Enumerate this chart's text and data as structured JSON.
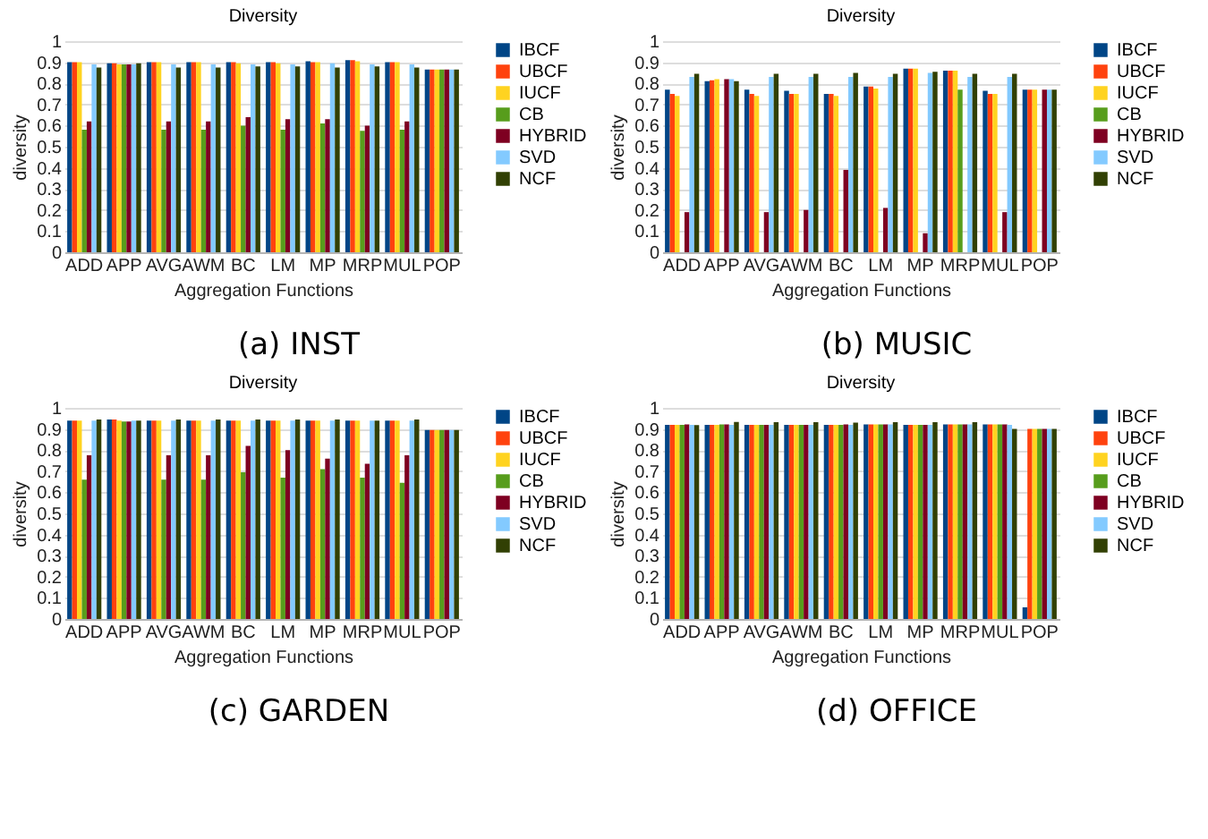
{
  "chart_data": [
    {
      "type": "bar",
      "title": "Diversity",
      "xlabel": "Aggregation Functions",
      "ylabel": "diversity",
      "annotations": [
        "(a) INST"
      ],
      "categories": [
        "ADD",
        "APP",
        "AVG",
        "AWM",
        "BC",
        "LM",
        "MP",
        "MRP",
        "MUL",
        "POP"
      ],
      "ylim": [
        0,
        1
      ],
      "yticks": [
        0,
        0.1,
        0.2,
        0.3,
        0.4,
        0.5,
        0.6,
        0.7,
        0.8,
        0.9,
        1
      ],
      "grid": "y",
      "legend": "right",
      "series": [
        {
          "name": "IBCF",
          "color": "#004586",
          "values": [
            0.9,
            0.895,
            0.9,
            0.9,
            0.9,
            0.9,
            0.905,
            0.91,
            0.9,
            0.865
          ]
        },
        {
          "name": "UBCF",
          "color": "#ff420e",
          "values": [
            0.9,
            0.895,
            0.9,
            0.9,
            0.9,
            0.9,
            0.9,
            0.91,
            0.9,
            0.865
          ]
        },
        {
          "name": "IUCF",
          "color": "#ffd320",
          "values": [
            0.9,
            0.89,
            0.9,
            0.9,
            0.895,
            0.895,
            0.9,
            0.905,
            0.9,
            0.865
          ]
        },
        {
          "name": "CB",
          "color": "#579d1c",
          "values": [
            0.58,
            0.89,
            0.58,
            0.58,
            0.6,
            0.58,
            0.61,
            0.575,
            0.58,
            0.865
          ]
        },
        {
          "name": "HYBRID",
          "color": "#7e0021",
          "values": [
            0.62,
            0.89,
            0.62,
            0.62,
            0.64,
            0.63,
            0.63,
            0.6,
            0.62,
            0.865
          ]
        },
        {
          "name": "SVD",
          "color": "#83caff",
          "values": [
            0.89,
            0.89,
            0.89,
            0.89,
            0.89,
            0.89,
            0.895,
            0.89,
            0.89,
            0.865
          ]
        },
        {
          "name": "NCF",
          "color": "#314004",
          "values": [
            0.875,
            0.895,
            0.875,
            0.875,
            0.88,
            0.88,
            0.875,
            0.88,
            0.875,
            0.865
          ]
        }
      ]
    },
    {
      "type": "bar",
      "title": "Diversity",
      "xlabel": "Aggregation Functions",
      "ylabel": "diversity",
      "annotations": [
        "(b) MUSIC"
      ],
      "categories": [
        "ADD",
        "APP",
        "AVG",
        "AWM",
        "BC",
        "LM",
        "MP",
        "MRP",
        "MUL",
        "POP"
      ],
      "ylim": [
        0,
        1
      ],
      "yticks": [
        0,
        0.1,
        0.2,
        0.3,
        0.4,
        0.5,
        0.6,
        0.7,
        0.8,
        0.9,
        1
      ],
      "grid": "y",
      "legend": "right",
      "series": [
        {
          "name": "IBCF",
          "color": "#004586",
          "values": [
            0.77,
            0.81,
            0.77,
            0.765,
            0.75,
            0.785,
            0.87,
            0.86,
            0.765,
            0.77
          ]
        },
        {
          "name": "UBCF",
          "color": "#ff420e",
          "values": [
            0.75,
            0.815,
            0.75,
            0.75,
            0.75,
            0.785,
            0.87,
            0.86,
            0.75,
            0.77
          ]
        },
        {
          "name": "IUCF",
          "color": "#ffd320",
          "values": [
            0.74,
            0.82,
            0.74,
            0.75,
            0.74,
            0.775,
            0.87,
            0.86,
            0.75,
            0.77
          ]
        },
        {
          "name": "CB",
          "color": "#579d1c",
          "values": [
            null,
            null,
            null,
            null,
            null,
            null,
            null,
            0.77,
            null,
            null
          ]
        },
        {
          "name": "HYBRID",
          "color": "#7e0021",
          "values": [
            0.19,
            0.82,
            0.19,
            0.2,
            0.39,
            0.21,
            0.09,
            null,
            0.19,
            0.77
          ]
        },
        {
          "name": "SVD",
          "color": "#83caff",
          "values": [
            0.83,
            0.82,
            0.83,
            0.83,
            0.83,
            0.83,
            0.85,
            0.83,
            0.83,
            0.77
          ]
        },
        {
          "name": "NCF",
          "color": "#314004",
          "values": [
            0.845,
            0.81,
            0.845,
            0.845,
            0.85,
            0.845,
            0.855,
            0.845,
            0.845,
            0.77
          ]
        }
      ]
    },
    {
      "type": "bar",
      "title": "Diversity",
      "xlabel": "Aggregation Functions",
      "ylabel": "diversity",
      "annotations": [
        "(c) GARDEN"
      ],
      "categories": [
        "ADD",
        "APP",
        "AVG",
        "AWM",
        "BC",
        "LM",
        "MP",
        "MRP",
        "MUL",
        "POP"
      ],
      "ylim": [
        0,
        1
      ],
      "yticks": [
        0,
        0.1,
        0.2,
        0.3,
        0.4,
        0.5,
        0.6,
        0.7,
        0.8,
        0.9,
        1
      ],
      "grid": "y",
      "legend": "right",
      "series": [
        {
          "name": "IBCF",
          "color": "#004586",
          "values": [
            0.94,
            0.945,
            0.94,
            0.94,
            0.94,
            0.94,
            0.94,
            0.94,
            0.94,
            0.895
          ]
        },
        {
          "name": "UBCF",
          "color": "#ff420e",
          "values": [
            0.94,
            0.945,
            0.94,
            0.94,
            0.94,
            0.94,
            0.94,
            0.94,
            0.94,
            0.895
          ]
        },
        {
          "name": "IUCF",
          "color": "#ffd320",
          "values": [
            0.94,
            0.94,
            0.94,
            0.94,
            0.94,
            0.94,
            0.94,
            0.94,
            0.94,
            0.895
          ]
        },
        {
          "name": "CB",
          "color": "#579d1c",
          "values": [
            0.66,
            0.935,
            0.66,
            0.66,
            0.695,
            0.67,
            0.71,
            0.67,
            0.645,
            0.895
          ]
        },
        {
          "name": "HYBRID",
          "color": "#7e0021",
          "values": [
            0.775,
            0.935,
            0.775,
            0.775,
            0.82,
            0.8,
            0.76,
            0.735,
            0.775,
            0.895
          ]
        },
        {
          "name": "SVD",
          "color": "#83caff",
          "values": [
            0.94,
            0.94,
            0.94,
            0.94,
            0.94,
            0.94,
            0.94,
            0.94,
            0.94,
            0.895
          ]
        },
        {
          "name": "NCF",
          "color": "#314004",
          "values": [
            0.945,
            0.94,
            0.945,
            0.945,
            0.945,
            0.945,
            0.945,
            0.94,
            0.945,
            0.895
          ]
        }
      ]
    },
    {
      "type": "bar",
      "title": "Diversity",
      "xlabel": "Aggregation Functions",
      "ylabel": "diversity",
      "annotations": [
        "(d) OFFICE"
      ],
      "categories": [
        "ADD",
        "APP",
        "AVG",
        "AWM",
        "BC",
        "LM",
        "MP",
        "MRP",
        "MUL",
        "POP"
      ],
      "ylim": [
        0,
        1
      ],
      "yticks": [
        0,
        0.1,
        0.2,
        0.3,
        0.4,
        0.5,
        0.6,
        0.7,
        0.8,
        0.9,
        1
      ],
      "grid": "y",
      "legend": "right",
      "series": [
        {
          "name": "IBCF",
          "color": "#004586",
          "values": [
            0.92,
            0.92,
            0.92,
            0.92,
            0.92,
            0.922,
            0.92,
            0.922,
            0.922,
            0.055
          ]
        },
        {
          "name": "UBCF",
          "color": "#ff420e",
          "values": [
            0.92,
            0.92,
            0.92,
            0.92,
            0.92,
            0.922,
            0.92,
            0.922,
            0.922,
            0.9
          ]
        },
        {
          "name": "IUCF",
          "color": "#ffd320",
          "values": [
            0.92,
            0.92,
            0.92,
            0.92,
            0.92,
            0.922,
            0.92,
            0.922,
            0.922,
            0.9
          ]
        },
        {
          "name": "CB",
          "color": "#579d1c",
          "values": [
            0.92,
            0.922,
            0.92,
            0.92,
            0.92,
            0.922,
            0.92,
            0.922,
            0.922,
            0.9
          ]
        },
        {
          "name": "HYBRID",
          "color": "#7e0021",
          "values": [
            0.922,
            0.922,
            0.92,
            0.92,
            0.922,
            0.922,
            0.92,
            0.922,
            0.922,
            0.9
          ]
        },
        {
          "name": "SVD",
          "color": "#83caff",
          "values": [
            0.92,
            0.92,
            0.92,
            0.92,
            0.92,
            0.922,
            0.92,
            0.922,
            0.92,
            0.9
          ]
        },
        {
          "name": "NCF",
          "color": "#314004",
          "values": [
            0.918,
            0.933,
            0.932,
            0.932,
            0.93,
            0.932,
            0.932,
            0.932,
            0.9,
            0.9
          ]
        }
      ]
    }
  ]
}
